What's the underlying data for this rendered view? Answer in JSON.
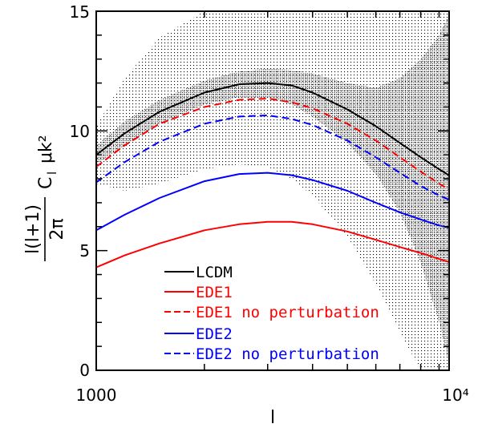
{
  "chart_data": {
    "type": "line",
    "xlabel": "l",
    "ylabel_numerator": "l(l+1)",
    "ylabel_denominator": "2π",
    "ylabel_suffix": "C",
    "ylabel_subscript": "l",
    "ylabel_unit": "μk²",
    "xscale": "log",
    "xlim": [
      1000,
      10000
    ],
    "ylim": [
      0,
      15
    ],
    "x_tick_labels": [
      "1000",
      "10⁴"
    ],
    "y_ticks": [
      0,
      5,
      10,
      15
    ],
    "y_tick_labels": [
      "0",
      "5",
      "10",
      "15"
    ],
    "legend_position": "bottom-left",
    "colors": {
      "lcdm": "#000000",
      "ede1": "#ff0000",
      "ede2": "#0000ff"
    },
    "series": [
      {
        "name": "LCDM",
        "color": "#000000",
        "dash": "solid",
        "x": [
          1000,
          1200,
          1500,
          2000,
          2500,
          3000,
          3500,
          4000,
          5000,
          6000,
          7000,
          8000,
          9000,
          9700
        ],
        "y": [
          9.0,
          9.9,
          10.8,
          11.6,
          11.95,
          12.0,
          11.9,
          11.6,
          10.9,
          10.2,
          9.5,
          8.9,
          8.4,
          8.1
        ]
      },
      {
        "name": "EDE1",
        "color": "#ff0000",
        "dash": "solid",
        "x": [
          1000,
          1200,
          1500,
          2000,
          2500,
          3000,
          3500,
          4000,
          5000,
          6000,
          7000,
          8000,
          9000,
          9700
        ],
        "y": [
          4.3,
          4.8,
          5.3,
          5.85,
          6.1,
          6.2,
          6.2,
          6.1,
          5.8,
          5.45,
          5.15,
          4.9,
          4.65,
          4.5
        ]
      },
      {
        "name": "EDE1 no perturbation",
        "color": "#ff0000",
        "dash": "dashed",
        "x": [
          1000,
          1200,
          1500,
          2000,
          2500,
          3000,
          3500,
          4000,
          5000,
          6000,
          7000,
          8000,
          9000,
          9700
        ],
        "y": [
          8.5,
          9.4,
          10.3,
          11.0,
          11.3,
          11.35,
          11.2,
          10.95,
          10.3,
          9.6,
          8.9,
          8.3,
          7.8,
          7.5
        ]
      },
      {
        "name": "EDE2",
        "color": "#0000ff",
        "dash": "solid",
        "x": [
          1000,
          1200,
          1500,
          2000,
          2500,
          3000,
          3500,
          4000,
          5000,
          6000,
          7000,
          8000,
          9000,
          9700
        ],
        "y": [
          5.85,
          6.5,
          7.2,
          7.9,
          8.2,
          8.25,
          8.15,
          7.95,
          7.5,
          7.0,
          6.6,
          6.3,
          6.05,
          5.95
        ]
      },
      {
        "name": "EDE2 no perturbation",
        "color": "#0000ff",
        "dash": "dashed",
        "x": [
          1000,
          1200,
          1500,
          2000,
          2500,
          3000,
          3500,
          4000,
          5000,
          6000,
          7000,
          8000,
          9000,
          9700
        ],
        "y": [
          7.85,
          8.7,
          9.55,
          10.3,
          10.6,
          10.65,
          10.5,
          10.25,
          9.6,
          8.9,
          8.25,
          7.7,
          7.3,
          7.1
        ]
      }
    ],
    "bands": [
      {
        "name": "outer",
        "density": "light",
        "x": [
          1000,
          1200,
          1500,
          2000,
          2500,
          3000,
          3500,
          4000,
          5000,
          6000,
          7000,
          8000,
          9000,
          9700
        ],
        "upper": [
          10.2,
          12.2,
          13.9,
          15.0,
          15.0,
          15.0,
          15.0,
          15.0,
          15.0,
          15.0,
          15.0,
          15.0,
          15.0,
          15.0
        ],
        "lower": [
          7.8,
          7.5,
          7.8,
          8.4,
          8.6,
          8.5,
          8.0,
          7.3,
          5.6,
          3.6,
          1.6,
          0.0,
          0.0,
          0.0
        ]
      },
      {
        "name": "inner",
        "density": "dense",
        "x": [
          1000,
          1200,
          1500,
          2000,
          2500,
          3000,
          3500,
          4000,
          5000,
          6000,
          7000,
          8000,
          9000,
          9700
        ],
        "upper": [
          9.4,
          10.4,
          11.3,
          12.1,
          12.5,
          12.6,
          12.55,
          12.4,
          12.0,
          11.8,
          12.2,
          13.0,
          14.0,
          15.0
        ],
        "lower": [
          8.6,
          9.4,
          10.3,
          11.1,
          11.4,
          11.4,
          11.1,
          10.6,
          9.5,
          8.2,
          6.6,
          4.5,
          2.0,
          0.0
        ]
      }
    ]
  }
}
